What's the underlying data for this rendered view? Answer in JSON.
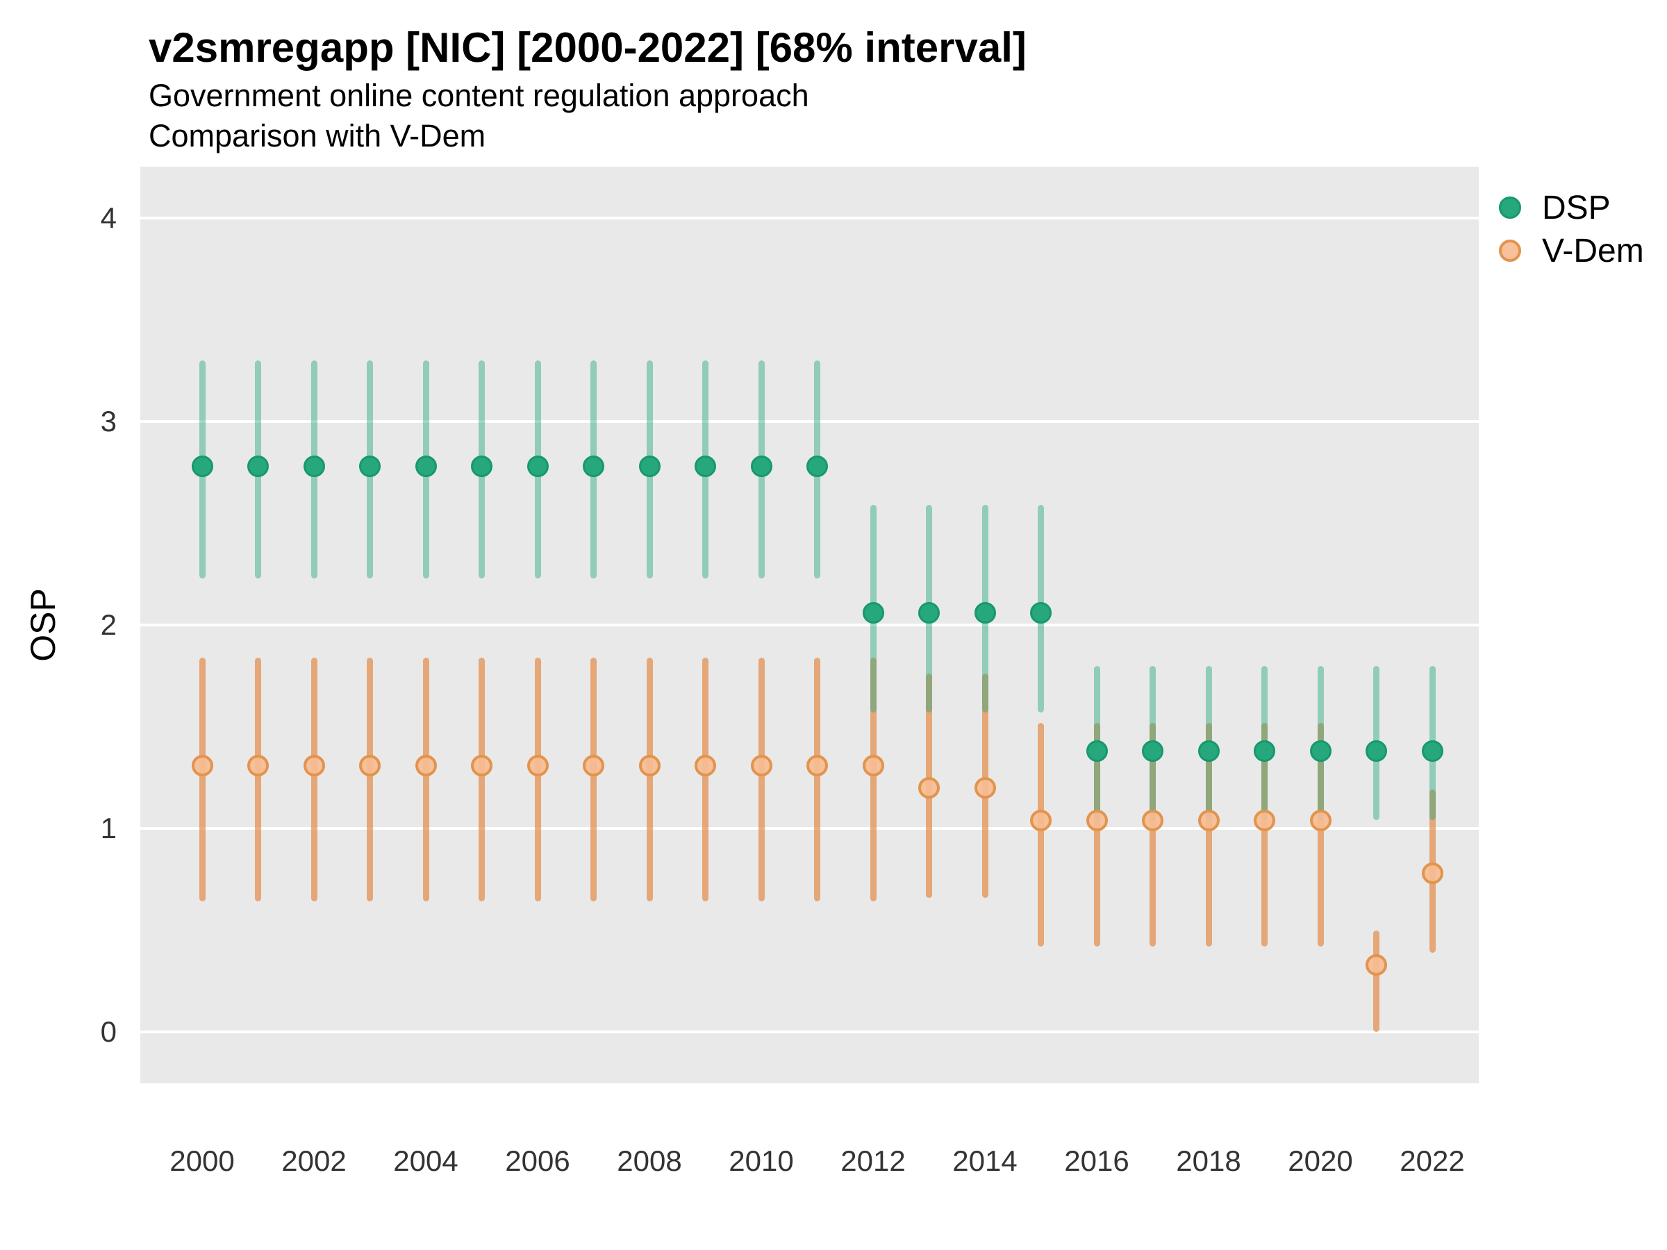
{
  "title": "v2smregapp [NIC] [2000-2022] [68% interval]",
  "subtitle_line1": "Government online content regulation approach",
  "subtitle_line2": "Comparison with V-Dem",
  "y_axis_label": "OSP",
  "legend": [
    {
      "label": "DSP"
    },
    {
      "label": "V-Dem"
    }
  ],
  "colors": {
    "panel_bg": "#e9e9e9",
    "gridline": "#ffffff",
    "dsp_point_fill": "#26a87c",
    "dsp_point_stroke": "#17986e",
    "dsp_bar": "rgba(38,168,124,0.45)",
    "vdem_point_fill": "rgba(246,188,146,0.92)",
    "vdem_point_stroke": "#e2944d",
    "vdem_bar": "rgba(226,132,60,0.66)"
  },
  "chart_data": {
    "type": "scatter",
    "subtype": "pointrange-errorbars",
    "title": "v2smregapp [NIC] [2000-2022] [68% interval]",
    "interval_level": "68%",
    "xlabel": "",
    "ylabel": "OSP",
    "x": [
      2000,
      2001,
      2002,
      2003,
      2004,
      2005,
      2006,
      2007,
      2008,
      2009,
      2010,
      2011,
      2012,
      2013,
      2014,
      2015,
      2016,
      2017,
      2018,
      2019,
      2020,
      2021,
      2022
    ],
    "xticks": [
      2000,
      2002,
      2004,
      2006,
      2008,
      2010,
      2012,
      2014,
      2016,
      2018,
      2020,
      2022
    ],
    "yticks": [
      0,
      1,
      2,
      3,
      4
    ],
    "ylim": [
      -0.25,
      4.25
    ],
    "grid": "horizontal-only",
    "legend_position": "right",
    "series": [
      {
        "name": "DSP",
        "values": [
          2.78,
          2.78,
          2.78,
          2.78,
          2.78,
          2.78,
          2.78,
          2.78,
          2.78,
          2.78,
          2.78,
          2.78,
          2.06,
          2.06,
          2.06,
          2.06,
          1.38,
          1.38,
          1.38,
          1.38,
          1.38,
          1.38,
          1.38
        ],
        "lower": [
          2.23,
          2.23,
          2.23,
          2.23,
          2.23,
          2.23,
          2.23,
          2.23,
          2.23,
          2.23,
          2.23,
          2.23,
          1.57,
          1.57,
          1.57,
          1.57,
          1.04,
          1.04,
          1.04,
          1.04,
          1.04,
          1.04,
          1.04
        ],
        "upper": [
          3.3,
          3.3,
          3.3,
          3.3,
          3.3,
          3.3,
          3.3,
          3.3,
          3.3,
          3.3,
          3.3,
          3.3,
          2.59,
          2.59,
          2.59,
          2.59,
          1.8,
          1.8,
          1.8,
          1.8,
          1.8,
          1.8,
          1.8
        ]
      },
      {
        "name": "V-Dem",
        "values": [
          1.31,
          1.31,
          1.31,
          1.31,
          1.31,
          1.31,
          1.31,
          1.31,
          1.31,
          1.31,
          1.31,
          1.31,
          1.31,
          1.2,
          1.2,
          1.04,
          1.04,
          1.04,
          1.04,
          1.04,
          1.04,
          0.33,
          0.78
        ],
        "lower": [
          0.64,
          0.64,
          0.64,
          0.64,
          0.64,
          0.64,
          0.64,
          0.64,
          0.64,
          0.64,
          0.64,
          0.64,
          0.64,
          0.66,
          0.66,
          0.42,
          0.42,
          0.42,
          0.42,
          0.42,
          0.42,
          0.0,
          0.39
        ],
        "upper": [
          1.84,
          1.84,
          1.84,
          1.84,
          1.84,
          1.84,
          1.84,
          1.84,
          1.84,
          1.84,
          1.84,
          1.84,
          1.84,
          1.76,
          1.76,
          1.52,
          1.52,
          1.52,
          1.52,
          1.52,
          1.52,
          0.5,
          1.19
        ]
      }
    ]
  }
}
